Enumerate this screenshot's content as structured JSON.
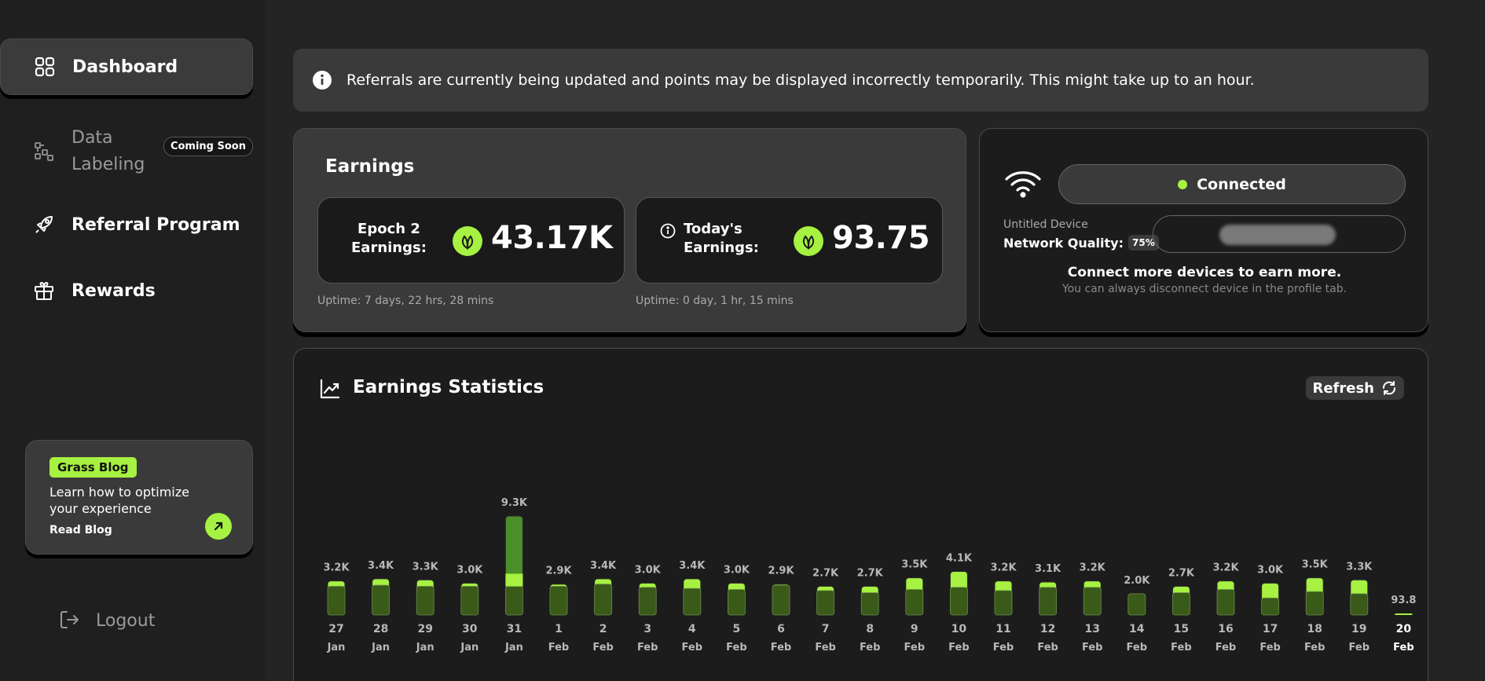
{
  "sidebar": {
    "items": [
      {
        "label": "Dashboard",
        "icon": "grid-icon",
        "active": true
      },
      {
        "label": "Data Labeling",
        "icon": "data-labeling-icon",
        "badge": "Coming Soon"
      },
      {
        "label": "Referral Program",
        "icon": "rocket-icon"
      },
      {
        "label": "Rewards",
        "icon": "gift-icon"
      }
    ],
    "blog": {
      "tag": "Grass Blog",
      "text": "Learn how to optimize your experience",
      "cta": "Read Blog"
    },
    "logout": "Logout"
  },
  "banner": {
    "text": "Referrals are currently being updated and points may be displayed incorrectly temporarily. This might take up to an hour."
  },
  "earnings": {
    "title": "Earnings",
    "epoch": {
      "label_line1": "Epoch 2",
      "label_line2": "Earnings:",
      "value": "43.17K",
      "uptime": "Uptime: 7 days, 22 hrs, 28 mins"
    },
    "today": {
      "label_line1": "Today's",
      "label_line2": "Earnings:",
      "value": "93.75",
      "uptime": "Uptime: 0 day, 1 hr, 15 mins"
    }
  },
  "device": {
    "status": "Connected",
    "name": "Untitled Device",
    "network_quality_label": "Network Quality:",
    "network_quality_value": "75%",
    "cta": "Connect more devices to earn more.",
    "sub": "You can always disconnect device in the profile tab."
  },
  "statistics": {
    "title": "Earnings Statistics",
    "refresh": "Refresh"
  },
  "colors": {
    "accent": "#a6f141",
    "accent_dark": "#3a5a1a",
    "bg": "#242424"
  },
  "chart_data": {
    "type": "bar",
    "categories": [
      {
        "day": "27",
        "month": "Jan"
      },
      {
        "day": "28",
        "month": "Jan"
      },
      {
        "day": "29",
        "month": "Jan"
      },
      {
        "day": "30",
        "month": "Jan"
      },
      {
        "day": "31",
        "month": "Jan"
      },
      {
        "day": "1",
        "month": "Feb"
      },
      {
        "day": "2",
        "month": "Feb"
      },
      {
        "day": "3",
        "month": "Feb"
      },
      {
        "day": "4",
        "month": "Feb"
      },
      {
        "day": "5",
        "month": "Feb"
      },
      {
        "day": "6",
        "month": "Feb"
      },
      {
        "day": "7",
        "month": "Feb"
      },
      {
        "day": "8",
        "month": "Feb"
      },
      {
        "day": "9",
        "month": "Feb"
      },
      {
        "day": "10",
        "month": "Feb"
      },
      {
        "day": "11",
        "month": "Feb"
      },
      {
        "day": "12",
        "month": "Feb"
      },
      {
        "day": "13",
        "month": "Feb"
      },
      {
        "day": "14",
        "month": "Feb"
      },
      {
        "day": "15",
        "month": "Feb"
      },
      {
        "day": "16",
        "month": "Feb"
      },
      {
        "day": "17",
        "month": "Feb"
      },
      {
        "day": "18",
        "month": "Feb"
      },
      {
        "day": "19",
        "month": "Feb"
      },
      {
        "day": "20",
        "month": "Feb"
      }
    ],
    "labels": [
      "3.2K",
      "3.4K",
      "3.3K",
      "3.0K",
      "9.3K",
      "2.9K",
      "3.4K",
      "3.0K",
      "3.4K",
      "3.0K",
      "2.9K",
      "2.7K",
      "2.7K",
      "3.5K",
      "4.1K",
      "3.2K",
      "3.1K",
      "3.2K",
      "2.0K",
      "2.7K",
      "3.2K",
      "3.0K",
      "3.5K",
      "3.3K",
      "93.8"
    ],
    "values": [
      3200,
      3400,
      3300,
      3000,
      9300,
      2900,
      3400,
      3000,
      3400,
      3000,
      2900,
      2700,
      2700,
      3500,
      4100,
      3200,
      3100,
      3200,
      2000,
      2700,
      3200,
      3000,
      3500,
      3300,
      93.8
    ],
    "split": [
      2700,
      2800,
      2700,
      2700,
      2700,
      2700,
      2900,
      2600,
      2500,
      2400,
      2800,
      2300,
      2100,
      2400,
      2600,
      2300,
      2600,
      2600,
      2000,
      2100,
      2400,
      1600,
      2200,
      2000,
      0
    ],
    "highlight": [
      false,
      false,
      false,
      false,
      true,
      false,
      false,
      false,
      false,
      false,
      false,
      false,
      false,
      false,
      false,
      false,
      false,
      false,
      false,
      false,
      false,
      false,
      false,
      false,
      false
    ],
    "current_index": 24
  }
}
